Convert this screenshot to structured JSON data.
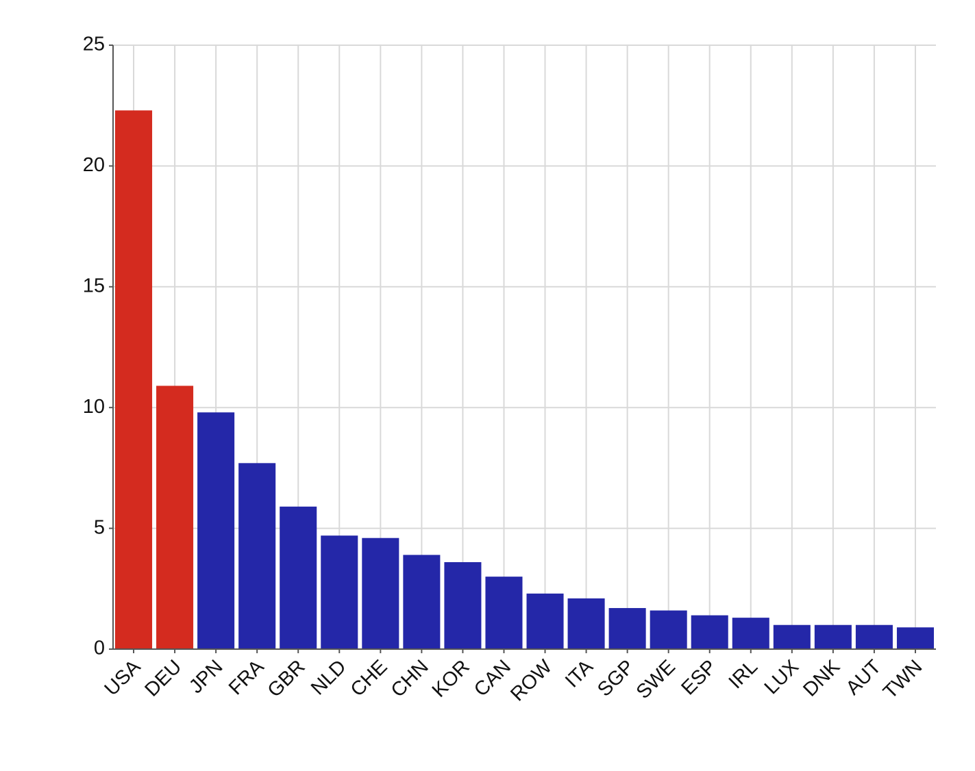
{
  "chart_data": {
    "type": "bar",
    "categories": [
      "USA",
      "DEU",
      "JPN",
      "FRA",
      "GBR",
      "NLD",
      "CHE",
      "CHN",
      "KOR",
      "CAN",
      "ROW",
      "ITA",
      "SGP",
      "SWE",
      "ESP",
      "IRL",
      "LUX",
      "DNK",
      "AUT",
      "TWN"
    ],
    "values": [
      22.3,
      10.9,
      9.8,
      7.7,
      5.9,
      4.7,
      4.6,
      3.9,
      3.6,
      3.0,
      2.3,
      2.1,
      1.7,
      1.6,
      1.4,
      1.3,
      1.0,
      1.0,
      1.0,
      0.9
    ],
    "colors": [
      "#d42b1f",
      "#d42b1f",
      "#2427a8",
      "#2427a8",
      "#2427a8",
      "#2427a8",
      "#2427a8",
      "#2427a8",
      "#2427a8",
      "#2427a8",
      "#2427a8",
      "#2427a8",
      "#2427a8",
      "#2427a8",
      "#2427a8",
      "#2427a8",
      "#2427a8",
      "#2427a8",
      "#2427a8",
      "#2427a8"
    ],
    "ylim": [
      0,
      25
    ],
    "yticks": [
      0,
      5,
      10,
      15,
      20,
      25
    ],
    "grid": true
  }
}
